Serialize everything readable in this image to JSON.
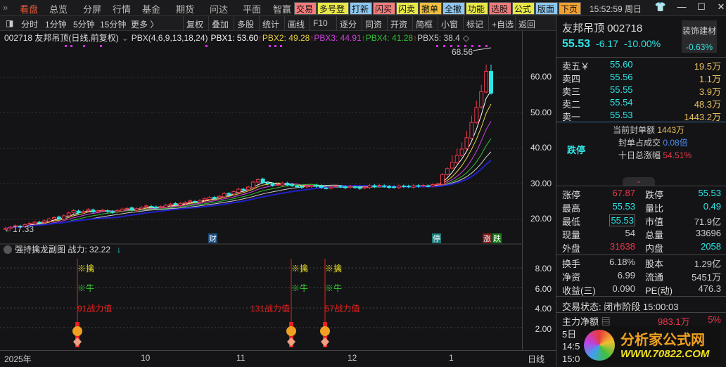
{
  "menu": {
    "items": [
      "看盘",
      "总览",
      "分屏",
      "行情",
      "基金",
      "期货",
      "问达",
      "平面",
      "智赢"
    ],
    "quick": [
      {
        "label": "交易",
        "color": "#f47c7c"
      },
      {
        "label": "多号登",
        "color": "#e8e84a"
      },
      {
        "label": "打新",
        "color": "#8ec8f0"
      },
      {
        "label": "闪买",
        "color": "#f47c7c"
      },
      {
        "label": "闪卖",
        "color": "#e8e84a"
      },
      {
        "label": "撤单",
        "color": "#f0c040"
      },
      {
        "label": "全撤",
        "color": "#8ec8f0"
      },
      {
        "label": "功能",
        "color": "#e8e84a"
      },
      {
        "label": "选股",
        "color": "#f47c7c"
      },
      {
        "label": "公式",
        "color": "#e8e84a"
      },
      {
        "label": "版面",
        "color": "#8ec8f0"
      },
      {
        "label": "下页",
        "color": "#f0a030"
      }
    ],
    "clock": "15:52:59 周日"
  },
  "toolbar": {
    "left": [
      "分时",
      "1分钟",
      "5分钟",
      "15分钟",
      "更多 〉"
    ],
    "right": [
      "复权",
      "叠加",
      "多股",
      "统计",
      "画线",
      "F10",
      "逐分",
      "同资",
      "开资",
      "简框",
      "小窗",
      "标记",
      "+自选",
      "返回"
    ]
  },
  "chart": {
    "title": "002718 友邦吊顶(日线,前复权)",
    "indicator": "PBX(4,6,9,13,18,24)",
    "pbx": [
      {
        "label": "PBX1: 53.60",
        "color": "#ffffff"
      },
      {
        "label": "PBX2: 49.28",
        "color": "#e8d040"
      },
      {
        "label": "PBX3: 44.91",
        "color": "#d040e0"
      },
      {
        "label": "PBX4: 41.28",
        "color": "#30c030"
      },
      {
        "label": "PBX5: 38.4",
        "color": "#cccccc"
      }
    ],
    "ma_periods": [
      4,
      6,
      9,
      13,
      18,
      24
    ],
    "ma_colors": [
      "#ffffff",
      "#e8d040",
      "#d040e0",
      "#30c030",
      "#cccccc",
      "#2020c8"
    ],
    "closes": [
      17.5,
      17.8,
      18.2,
      18.0,
      18.5,
      18.9,
      19.2,
      19.0,
      19.6,
      20.1,
      20.5,
      20.2,
      21.0,
      21.8,
      22.5,
      21.9,
      22.3,
      22.8,
      22.1,
      22.4,
      22.6,
      22.2,
      22.0,
      22.5,
      22.9,
      23.1,
      22.7,
      23.0,
      23.4,
      23.8,
      23.5,
      23.2,
      23.6,
      24.0,
      24.3,
      24.1,
      24.5,
      24.8,
      25.2,
      24.9,
      25.3,
      25.8,
      26.2,
      26.0,
      26.5,
      27.3,
      27.0,
      27.8,
      28.5,
      28.2,
      29.1,
      30.5,
      31.2,
      30.4,
      30.0,
      29.6,
      29.8,
      30.2,
      29.7,
      29.5,
      29.2,
      29.0,
      29.4,
      29.6,
      29.3,
      29.0,
      28.8,
      29.1,
      29.4,
      29.2,
      28.9,
      29.3,
      29.0,
      28.7,
      29.1,
      29.5,
      29.2,
      29.6,
      29.3,
      29.0,
      29.1,
      29.4,
      29.2,
      29.2,
      29.5,
      29.3,
      29.6,
      29.4,
      29.8,
      30.0,
      32.6,
      34.3,
      36.1,
      38.0,
      39.8,
      43.0,
      47.3,
      51.5,
      56.0,
      61.7,
      55.53
    ],
    "price_ticks": [
      60,
      50,
      40,
      30,
      20
    ],
    "high_label": "68.56",
    "low_label": "17.33",
    "markers": [
      {
        "label": "财",
        "color": "#1a4a7a"
      },
      {
        "label": "停",
        "color": "#1a7a7a"
      },
      {
        "label": "涨",
        "color": "#7a1a1a"
      },
      {
        "label": "跌",
        "color": "#1a7a1a"
      }
    ]
  },
  "sub": {
    "title": "强持擒龙副图",
    "value_label": "战力: 32.22",
    "ticks": [
      "8.00",
      "6.00",
      "4.00",
      "2.00"
    ],
    "signals": [
      {
        "t1": "※擒",
        "t2": "※牛",
        "t3": "91战力值"
      },
      {
        "t1": "※擒",
        "t2": "※牛",
        "t3": "131战力值"
      },
      {
        "t1": "※擒",
        "t2": "※牛",
        "t3": "57战力值"
      }
    ]
  },
  "dates": {
    "labels": [
      "2025年",
      "10",
      "11",
      "12",
      "1"
    ],
    "period": "日线"
  },
  "quote": {
    "name": "友邦吊顶 002718",
    "price": "55.53",
    "change": "-6.17",
    "pct": "-10.00%",
    "sector": "装饰建材",
    "sector_pct": "-0.63%",
    "asks": [
      {
        "l": "卖五￥",
        "p": "55.60",
        "v": "19.5万"
      },
      {
        "l": "卖四",
        "p": "55.56",
        "v": "1.1万"
      },
      {
        "l": "卖三",
        "p": "55.55",
        "v": "3.9万"
      },
      {
        "l": "卖二",
        "p": "55.54",
        "v": "48.3万"
      },
      {
        "l": "卖一",
        "p": "55.53",
        "v": "1443.2万"
      }
    ],
    "status": "跌停",
    "seal_l": "当前封单额",
    "seal_v": "1443万",
    "ratio_l": "封单占成交",
    "ratio_v": "0.08倍",
    "ten_l": "十日总涨幅",
    "ten_v": "54.51%",
    "stats": [
      [
        "涨停",
        "67.87",
        "跌停",
        "55.53"
      ],
      [
        "最高",
        "55.53",
        "量比",
        "0.49"
      ],
      [
        "最低",
        "55.53",
        "市值",
        "71.9亿"
      ],
      [
        "现量",
        "54",
        "总量",
        "33696"
      ],
      [
        "外盘",
        "31638",
        "内盘",
        "2058"
      ]
    ],
    "stats2": [
      [
        "换手",
        "6.18%",
        "股本",
        "1.29亿"
      ],
      [
        "净资",
        "6.99",
        "流通",
        "5451万"
      ],
      [
        "收益(三)",
        "0.090",
        "PE(动)",
        "476.3"
      ]
    ],
    "trade_state": "交易状态: 闭市阶段 15:00:03",
    "flow_l": "主力净额",
    "flow_v": "983.1万",
    "flow_p": "5%",
    "five": "5日",
    "t1": "14:5",
    "t2": "15:0"
  },
  "watermark": {
    "line1": "分析家公式网",
    "line2": "WWW.70822.COM"
  }
}
